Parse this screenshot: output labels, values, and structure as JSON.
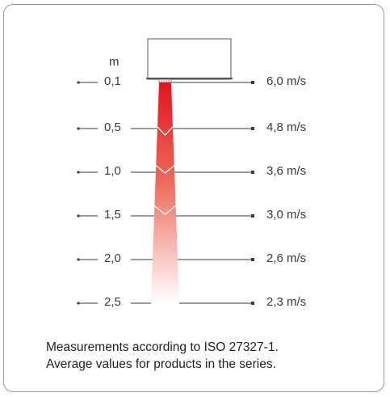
{
  "diagram": {
    "unit": "m",
    "rows": [
      {
        "distance": "0,1",
        "velocity": "6,0 m/s"
      },
      {
        "distance": "0,5",
        "velocity": "4,8 m/s"
      },
      {
        "distance": "1,0",
        "velocity": "3,6 m/s"
      },
      {
        "distance": "1,5",
        "velocity": "3,0 m/s"
      },
      {
        "distance": "2,0",
        "velocity": "2,6 m/s"
      },
      {
        "distance": "2,5",
        "velocity": "2,3 m/s"
      }
    ],
    "colors": {
      "jet_top": "#e3141b",
      "jet_bottom": "#ffffff",
      "lines": "#3a3a3a",
      "border": "#9a9a9a"
    }
  },
  "notes": {
    "line1": "Measurements according to ISO 27327-1.",
    "line2": "Average values for products in the series."
  }
}
